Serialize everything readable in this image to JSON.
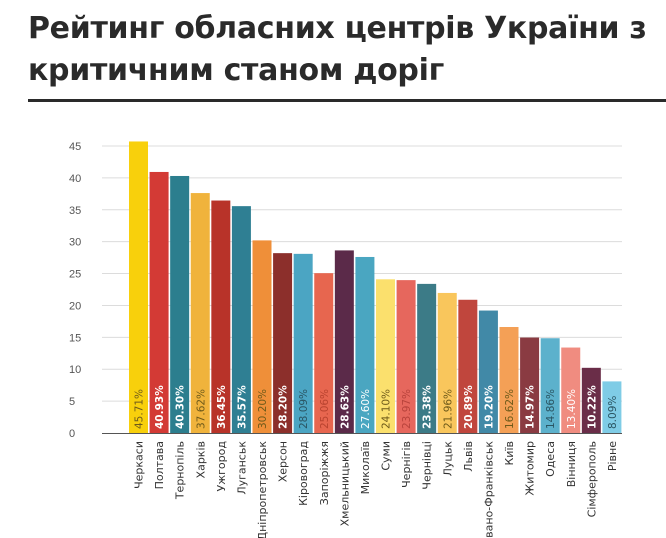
{
  "page": {
    "title": "Рейтинг обласних центрів України з критичним станом доріг"
  },
  "chart_data": {
    "type": "bar",
    "title": "Рейтинг обласних центрів України з критичним станом доріг",
    "xlabel": "",
    "ylabel": "",
    "ylim": [
      0,
      45
    ],
    "yticks": [
      "0",
      "5",
      "10",
      "15",
      "20",
      "25",
      "30",
      "35",
      "40",
      "45"
    ],
    "grid": true,
    "categories": [
      "Черкаси",
      "Полтава",
      "Тернопіль",
      "Харків",
      "Ужгород",
      "Луганськ",
      "Дніпропетровськ",
      "Херсон",
      "Кіровоград",
      "Запоріжжя",
      "Хмельницький",
      "Миколаїв",
      "Суми",
      "Чернігів",
      "Чернівці",
      "Луцьк",
      "Львів",
      "Івано-Франківськ",
      "Київ",
      "Житомир",
      "Одеса",
      "Вінниця",
      "Сімферополь",
      "Рівне"
    ],
    "values": [
      45.71,
      40.93,
      40.3,
      37.62,
      36.45,
      35.57,
      30.2,
      28.2,
      28.09,
      25.06,
      28.63,
      27.6,
      24.1,
      23.97,
      23.38,
      21.96,
      20.89,
      19.2,
      16.62,
      14.97,
      14.86,
      13.4,
      10.22,
      8.09
    ],
    "value_labels": [
      "45.71%",
      "40.93%",
      "40.30%",
      "37.62%",
      "36.45%",
      "35.57%",
      "30.20%",
      "28.20%",
      "28.09%",
      "25.06%",
      "28.63%",
      "27.60%",
      "24.10%",
      "23.97%",
      "23.38%",
      "21.96%",
      "20.89%",
      "19.20%",
      "16.62%",
      "14.97%",
      "14.86%",
      "13.40%",
      "10.22%",
      "8.09%"
    ],
    "colors": [
      "#f8d00c",
      "#d33a35",
      "#2c7e8e",
      "#f0b33c",
      "#b83329",
      "#2f7f93",
      "#ef8f39",
      "#8c2f2b",
      "#4ba5c3",
      "#e7664f",
      "#5b2a49",
      "#4aa6c1",
      "#fbe06d",
      "#e6675d",
      "#3c7b87",
      "#f9c65c",
      "#c0463d",
      "#4189a7",
      "#f4a056",
      "#8a3b42",
      "#5cb1cc",
      "#f08c80",
      "#6a2d48",
      "#7fcce6"
    ],
    "label_colors": [
      "#6e5a1a",
      "#ffffff",
      "#ffffff",
      "#6e5a1a",
      "#ffffff",
      "#ffffff",
      "#6e5a1a",
      "#ffffff",
      "#2a5563",
      "#b8432f",
      "#ffffff",
      "#ffffff",
      "#6e5a1a",
      "#b8433c",
      "#ffffff",
      "#6e5a1a",
      "#ffffff",
      "#ffffff",
      "#6e5a1a",
      "#ffffff",
      "#2a5563",
      "#ffffff",
      "#ffffff",
      "#2a5563"
    ],
    "label_bold": [
      false,
      true,
      true,
      false,
      true,
      true,
      false,
      true,
      false,
      false,
      true,
      false,
      false,
      false,
      true,
      false,
      true,
      true,
      false,
      true,
      false,
      false,
      true,
      false
    ]
  }
}
